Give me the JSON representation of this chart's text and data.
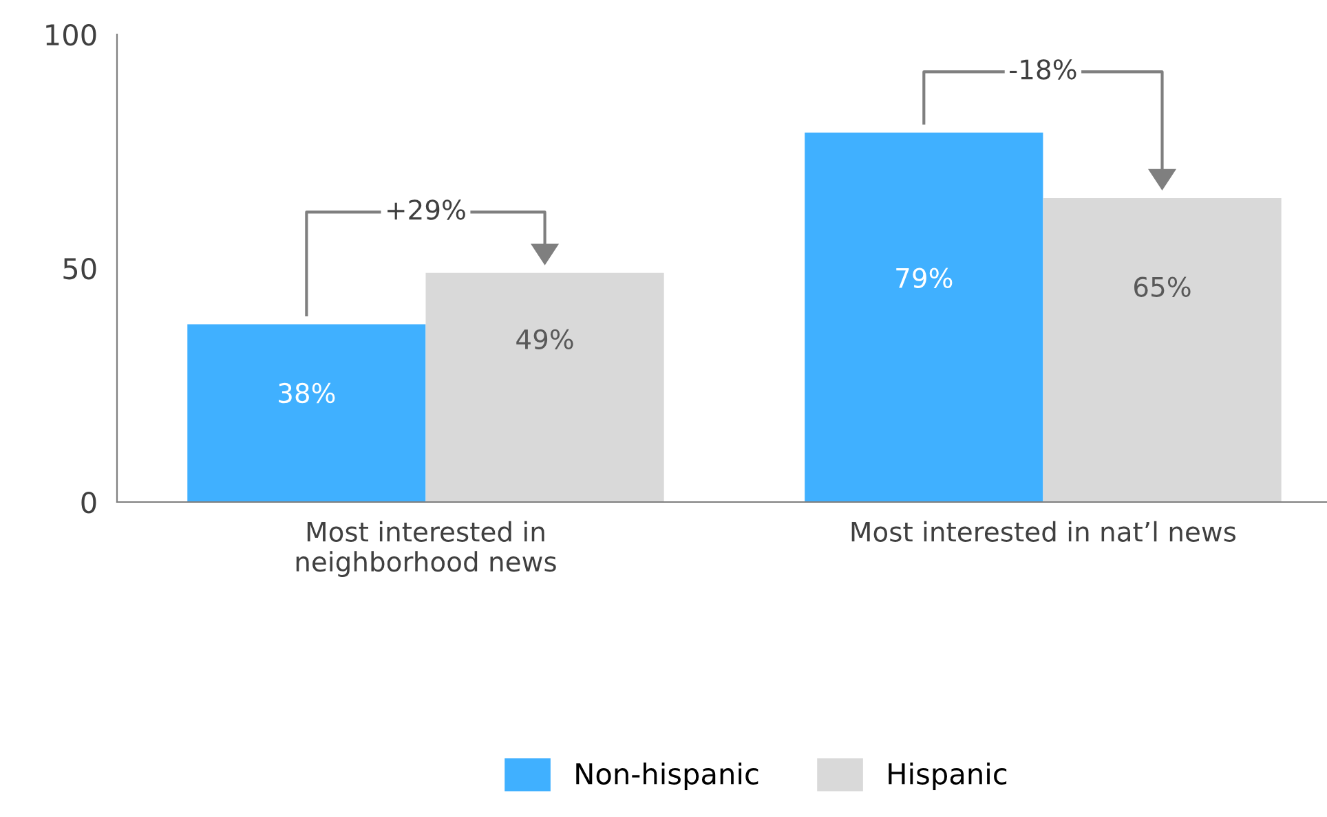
{
  "chart_data": {
    "type": "bar",
    "categories": [
      "Most interested in\nneighborhood news",
      "Most interested in nat’l news"
    ],
    "series": [
      {
        "name": "Non-hispanic",
        "color": "#40b0ff",
        "values": [
          38,
          79
        ],
        "value_labels": [
          "38%",
          "79%"
        ]
      },
      {
        "name": "Hispanic",
        "color": "#d9d9d9",
        "values": [
          49,
          65
        ],
        "value_labels": [
          "49%",
          "65%"
        ]
      }
    ],
    "ylim": [
      0,
      100
    ],
    "yticks": [
      0,
      50,
      100
    ],
    "grid": false,
    "legend": "bottom",
    "annotations": [
      "+29%",
      "-18%"
    ]
  }
}
